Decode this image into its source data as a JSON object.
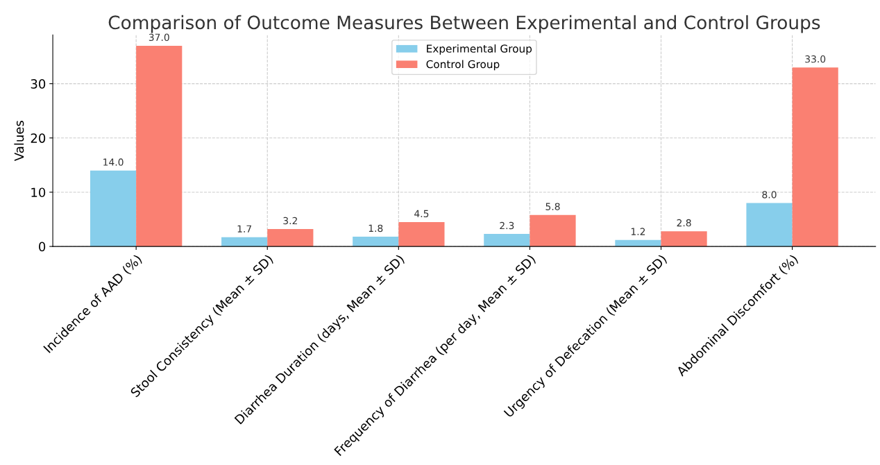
{
  "chart_data": {
    "type": "bar",
    "title": "Comparison of Outcome Measures Between Experimental and Control Groups",
    "ylabel": "Values",
    "categories": [
      "Incidence of AAD (%)",
      "Stool Consistency (Mean ± SD)",
      "Diarrhea Duration (days, Mean ± SD)",
      "Frequency of Diarrhea (per day, Mean ± SD)",
      "Urgency of Defecation (Mean ± SD)",
      "Abdominal Discomfort (%)"
    ],
    "series": [
      {
        "name": "Experimental Group",
        "color": "#87ceeb",
        "values": [
          14,
          1.7,
          1.8,
          2.3,
          1.2,
          8
        ],
        "value_labels": [
          "14.0",
          "1.7",
          "1.8",
          "2.3",
          "1.2",
          "8.0"
        ]
      },
      {
        "name": "Control Group",
        "color": "#fa8072",
        "values": [
          37,
          3.2,
          4.5,
          5.8,
          2.8,
          33
        ],
        "value_labels": [
          "37.0",
          "3.2",
          "4.5",
          "5.8",
          "2.8",
          "33.0"
        ]
      }
    ],
    "ylim": [
      0,
      39
    ],
    "yticks": [
      0,
      10,
      20,
      30
    ],
    "grid": true,
    "legend": "top"
  }
}
